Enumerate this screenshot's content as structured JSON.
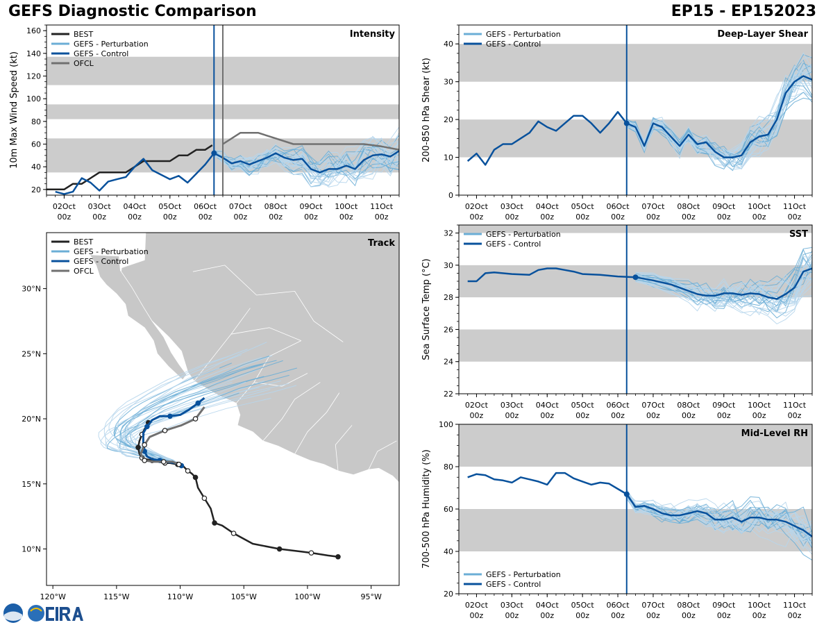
{
  "header": {
    "title": "GEFS Diagnostic Comparison",
    "storm_id": "EP15 - EP152023"
  },
  "colors": {
    "best": "#222222",
    "perturbation": "#6baed6",
    "perturbation_light": "#b7d6ec",
    "control": "#08519c",
    "ofcl": "#707070",
    "band": "#cccccc",
    "land": "#c8c8c8"
  },
  "time_axis": {
    "labels": [
      [
        "02Oct",
        "00z"
      ],
      [
        "03Oct",
        "00z"
      ],
      [
        "04Oct",
        "00z"
      ],
      [
        "05Oct",
        "00z"
      ],
      [
        "06Oct",
        "00z"
      ],
      [
        "07Oct",
        "00z"
      ],
      [
        "08Oct",
        "00z"
      ],
      [
        "09Oct",
        "00z"
      ],
      [
        "10Oct",
        "00z"
      ],
      [
        "11Oct",
        "00z"
      ]
    ],
    "range": [
      -0.5,
      9.5
    ],
    "init_time": 4.25
  },
  "chart_data": [
    {
      "id": "intensity",
      "type": "line",
      "title": "Intensity",
      "ylabel": "10m Max Wind Speed (kt)",
      "ylim": [
        15,
        165
      ],
      "yticks": [
        20,
        40,
        60,
        80,
        100,
        120,
        140,
        160
      ],
      "bands": [
        [
          35,
          65
        ],
        [
          82,
          95
        ],
        [
          112,
          137
        ]
      ],
      "ofcl_time": 4.5,
      "legend": [
        "BEST",
        "GEFS - Perturbation",
        "GEFS - Control",
        "OFCL"
      ],
      "series": [
        {
          "name": "BEST",
          "x": [
            -0.5,
            -0.25,
            0,
            0.25,
            0.5,
            0.75,
            1,
            1.25,
            1.5,
            1.75,
            2,
            2.25,
            2.5,
            2.75,
            3,
            3.25,
            3.5,
            3.75,
            4,
            4.2
          ],
          "values": [
            20,
            20,
            20,
            25,
            25,
            30,
            35,
            35,
            35,
            35,
            40,
            45,
            45,
            45,
            45,
            50,
            50,
            55,
            55,
            59
          ]
        },
        {
          "name": "GEFS - Control",
          "x": [
            -0.25,
            0,
            0.25,
            0.5,
            0.75,
            1,
            1.25,
            1.5,
            1.75,
            2,
            2.25,
            2.5,
            2.75,
            3,
            3.25,
            3.5,
            3.75,
            4,
            4.25,
            4.5,
            4.75,
            5,
            5.25,
            5.5,
            5.75,
            6,
            6.25,
            6.5,
            6.75,
            7,
            7.25,
            7.5,
            7.75,
            8,
            8.25,
            8.5,
            8.75,
            9,
            9.25,
            9.5
          ],
          "values": [
            18,
            16,
            18,
            30,
            26,
            19,
            27,
            29,
            31,
            40,
            47,
            37,
            33,
            29,
            32,
            26,
            34,
            42,
            52,
            48,
            43,
            45,
            42,
            45,
            48,
            52,
            48,
            46,
            47,
            38,
            35,
            38,
            38,
            41,
            38,
            46,
            50,
            51,
            49,
            54
          ]
        },
        {
          "name": "OFCL",
          "x": [
            4.5,
            5,
            5.5,
            6,
            6.5,
            7,
            7.5,
            8,
            8.5,
            9,
            9.5
          ],
          "values": [
            60,
            70,
            70,
            65,
            60,
            60,
            60,
            60,
            60,
            58,
            55
          ]
        }
      ]
    },
    {
      "id": "shear",
      "type": "line",
      "title": "Deep-Layer Shear",
      "ylabel": "200-850 hPa Shear (kt)",
      "ylim": [
        0,
        45
      ],
      "yticks": [
        0,
        10,
        20,
        30,
        40
      ],
      "bands": [
        [
          10,
          20
        ],
        [
          30,
          40
        ]
      ],
      "legend": [
        "GEFS - Perturbation",
        "GEFS - Control"
      ],
      "series": [
        {
          "name": "GEFS - Control",
          "x": [
            -0.25,
            0,
            0.25,
            0.5,
            0.75,
            1,
            1.25,
            1.5,
            1.75,
            2,
            2.25,
            2.5,
            2.75,
            3,
            3.25,
            3.5,
            3.75,
            4,
            4.25,
            4.5,
            4.75,
            5,
            5.25,
            5.5,
            5.75,
            6,
            6.25,
            6.5,
            6.75,
            7,
            7.25,
            7.5,
            7.75,
            8,
            8.25,
            8.5,
            8.75,
            9,
            9.25,
            9.5
          ],
          "values": [
            9,
            11,
            8,
            12,
            13.5,
            13.5,
            15,
            16.5,
            19.5,
            18,
            17,
            19,
            21,
            21,
            19,
            16.5,
            19,
            22,
            19,
            18,
            13,
            19,
            18,
            15.5,
            13,
            16,
            13.5,
            14,
            11.5,
            10,
            10,
            10.5,
            14,
            15.5,
            16,
            20,
            27,
            30,
            31.5,
            30.5
          ]
        }
      ]
    },
    {
      "id": "sst",
      "type": "line",
      "title": "SST",
      "ylabel": "Sea Surface Temp (°C)",
      "ylim": [
        22,
        32.5
      ],
      "yticks": [
        22,
        24,
        26,
        28,
        30,
        32
      ],
      "bands": [
        [
          24,
          26
        ],
        [
          28,
          30
        ],
        [
          32,
          32.5
        ]
      ],
      "legend": [
        "GEFS - Perturbation",
        "GEFS - Control"
      ],
      "series": [
        {
          "name": "GEFS - Control",
          "x": [
            -0.25,
            0,
            0.25,
            0.5,
            1,
            1.5,
            1.75,
            2,
            2.25,
            2.5,
            2.75,
            3,
            3.5,
            4,
            4.5,
            5,
            5.5,
            6,
            6.25,
            6.5,
            6.75,
            7,
            7.25,
            7.5,
            7.75,
            8,
            8.25,
            8.5,
            8.75,
            9,
            9.25,
            9.5
          ],
          "values": [
            29,
            29,
            29.5,
            29.55,
            29.45,
            29.4,
            29.7,
            29.8,
            29.8,
            29.7,
            29.6,
            29.45,
            29.4,
            29.3,
            29.25,
            29.05,
            28.8,
            28.4,
            28.2,
            28.1,
            28.1,
            28.25,
            28.25,
            28.15,
            28.25,
            28.2,
            28.0,
            27.9,
            28.2,
            28.6,
            29.6,
            29.8
          ]
        }
      ]
    },
    {
      "id": "rh",
      "type": "line",
      "title": "Mid-Level RH",
      "ylabel": "700-500 hPa Humidity (%)",
      "ylim": [
        20,
        100
      ],
      "yticks": [
        20,
        40,
        60,
        80,
        100
      ],
      "bands": [
        [
          40,
          60
        ],
        [
          80,
          100
        ]
      ],
      "legend": [
        "GEFS - Perturbation",
        "GEFS - Control"
      ],
      "series": [
        {
          "name": "GEFS - Control",
          "x": [
            -0.25,
            0,
            0.25,
            0.5,
            0.75,
            1,
            1.25,
            1.5,
            1.75,
            2,
            2.25,
            2.5,
            2.75,
            3,
            3.25,
            3.5,
            3.75,
            4,
            4.25,
            4.5,
            4.75,
            5,
            5.25,
            5.5,
            5.75,
            6,
            6.25,
            6.5,
            6.75,
            7,
            7.25,
            7.5,
            7.75,
            8,
            8.25,
            8.5,
            8.75,
            9,
            9.25,
            9.5
          ],
          "values": [
            75,
            76.5,
            76,
            74,
            73.5,
            72.5,
            75,
            74,
            73,
            71.5,
            77,
            77,
            74.5,
            73,
            71.5,
            72.5,
            72,
            69.5,
            67,
            61,
            61.5,
            60,
            58,
            57,
            57,
            58,
            59,
            58,
            55,
            55,
            56,
            54,
            56,
            56,
            55,
            55,
            54,
            52,
            50,
            47
          ]
        }
      ]
    },
    {
      "id": "track",
      "type": "line",
      "title": "Track",
      "xlim": [
        -120.5,
        -92.8
      ],
      "ylim": [
        7.2,
        34.3
      ],
      "xticks": [
        -120,
        -115,
        -110,
        -105,
        -100,
        -95
      ],
      "xticklabels": [
        "120°W",
        "115°W",
        "110°W",
        "105°W",
        "100°W",
        "95°W"
      ],
      "yticks": [
        10,
        15,
        20,
        25,
        30
      ],
      "yticklabels": [
        "10°N",
        "15°N",
        "20°N",
        "25°N",
        "30°N"
      ],
      "legend": [
        "BEST",
        "GEFS - Perturbation",
        "GEFS - Control",
        "OFCL"
      ],
      "series": [
        {
          "name": "BEST",
          "lon": [
            -97.6,
            -98.4,
            -99.7,
            -100.5,
            -102.2,
            -104.3,
            -105.8,
            -106.7,
            -107.3,
            -107.6,
            -108.1,
            -108.6,
            -108.8,
            -109.1,
            -109.4,
            -109.8,
            -110.2,
            -110.8,
            -111.2,
            -111.7,
            -112.2,
            -112.7,
            -113.0,
            -113.2,
            -113.3,
            -113.2,
            -113.0,
            -112.8,
            -112.5
          ],
          "lat": [
            9.4,
            9.5,
            9.7,
            9.8,
            10.0,
            10.4,
            11.2,
            11.8,
            12.0,
            13.1,
            13.9,
            14.7,
            15.5,
            15.8,
            16.0,
            16.4,
            16.5,
            16.6,
            16.6,
            16.7,
            16.8,
            16.9,
            17.0,
            17.3,
            17.8,
            18.3,
            18.8,
            19.2,
            19.7
          ]
        },
        {
          "name": "GEFS - Control",
          "lon": [
            -109.9,
            -110.4,
            -111.1,
            -111.6,
            -112.2,
            -112.6,
            -112.8,
            -112.9,
            -112.9,
            -112.6,
            -112.2,
            -111.6,
            -110.8,
            -110.0,
            -109.3,
            -108.6,
            -108.1
          ],
          "lat": [
            16.4,
            16.6,
            16.7,
            16.8,
            16.9,
            17.1,
            17.5,
            18.2,
            18.9,
            19.4,
            19.9,
            20.2,
            20.2,
            20.3,
            20.7,
            21.2,
            21.6
          ]
        },
        {
          "name": "OFCL",
          "lon": [
            -110.1,
            -110.6,
            -111.3,
            -112.1,
            -112.8,
            -113.1,
            -112.8,
            -112.4,
            -111.2,
            -109.9,
            -108.8,
            -108.1
          ],
          "lat": [
            16.5,
            16.7,
            16.7,
            16.7,
            16.8,
            17.3,
            18.0,
            18.6,
            19.1,
            19.5,
            20.0,
            20.9
          ]
        }
      ]
    }
  ]
}
